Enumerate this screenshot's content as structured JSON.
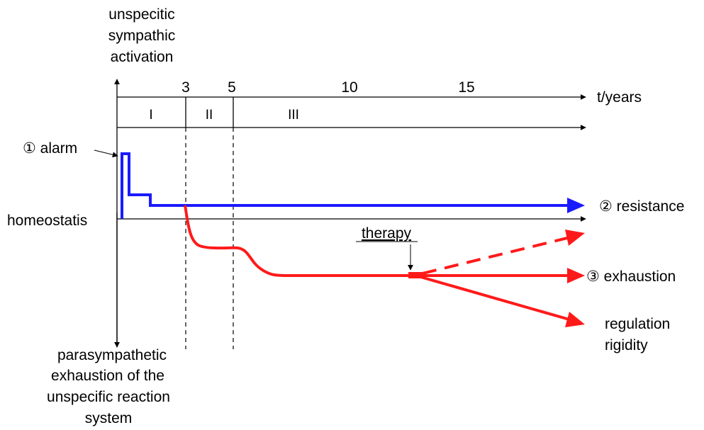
{
  "y_axis": {
    "top_label_lines": [
      "unspecitic",
      "sympathic",
      "activation"
    ],
    "bottom_label_lines": [
      "parasympathetic",
      "exhaustion of the",
      "unspecific reaction",
      "system"
    ]
  },
  "x_axis": {
    "label": "t/years",
    "ticks": [
      {
        "value": 3,
        "label": "3"
      },
      {
        "value": 5,
        "label": "5"
      },
      {
        "value": 10,
        "label": "10"
      },
      {
        "value": 15,
        "label": "15"
      }
    ]
  },
  "phases": [
    "I",
    "II",
    "III"
  ],
  "labels": {
    "alarm": "① alarm",
    "homeostasis": "homeostatis",
    "resistance": "② resistance",
    "exhaustion": "③ exhaustion",
    "regulation_lines": [
      "regulation",
      "rigidity"
    ],
    "therapy": "therapy"
  },
  "colors": {
    "axis": "#000000",
    "resistance_curve": "#1a1aff",
    "exhaustion_curve": "#ff1a1a"
  }
}
